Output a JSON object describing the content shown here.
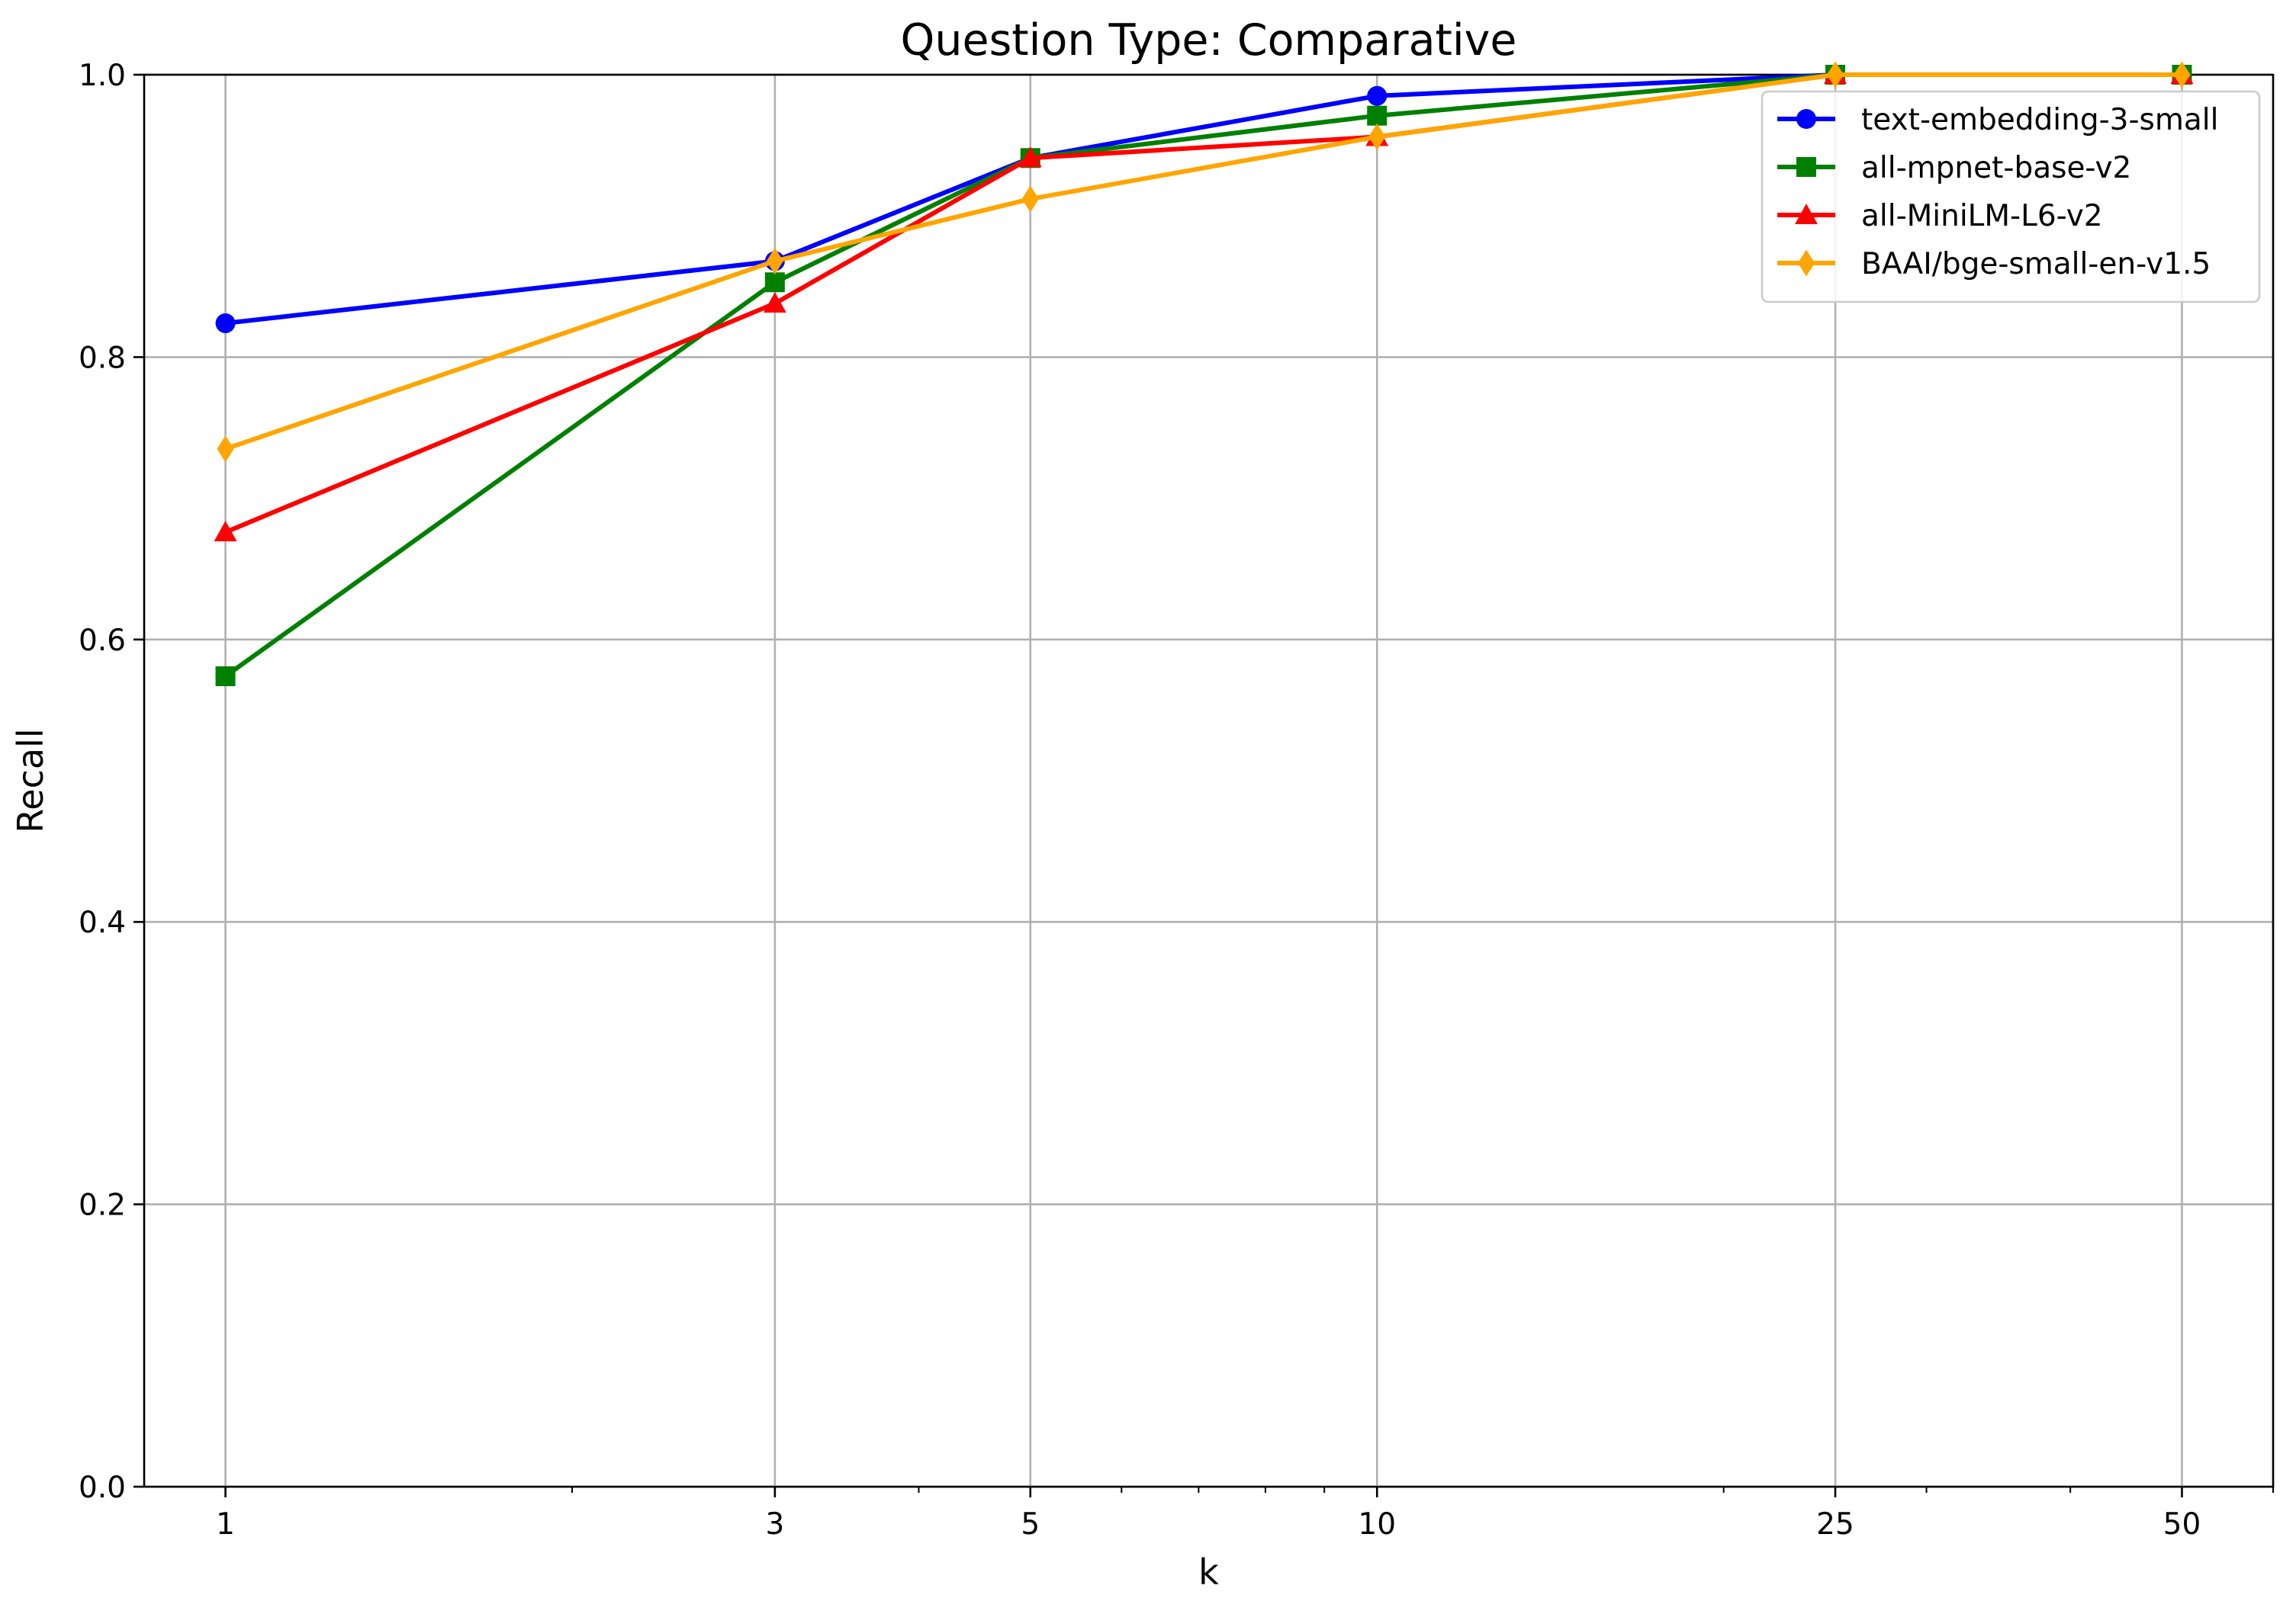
{
  "chart_data": {
    "type": "line",
    "title": "Question Type: Comparative",
    "xlabel": "k",
    "ylabel": "Recall",
    "x_scale": "log",
    "x": [
      1,
      3,
      5,
      10,
      25,
      50
    ],
    "x_tick_labels": [
      "1",
      "3",
      "5",
      "10",
      "25",
      "50"
    ],
    "xlim": [
      0.85,
      60
    ],
    "ylim": [
      0.0,
      1.0
    ],
    "y_ticks": [
      0.0,
      0.2,
      0.4,
      0.6,
      0.8,
      1.0
    ],
    "y_tick_labels": [
      "0.0",
      "0.2",
      "0.4",
      "0.6",
      "0.8",
      "1.0"
    ],
    "grid": true,
    "legend_position": "top-right",
    "series": [
      {
        "name": "text-embedding-3-small",
        "color": "#0000ff",
        "marker": "circle",
        "values": [
          0.824,
          0.868,
          0.941,
          0.985,
          1.0,
          1.0
        ]
      },
      {
        "name": "all-mpnet-base-v2",
        "color": "#008000",
        "marker": "square",
        "values": [
          0.574,
          0.853,
          0.941,
          0.971,
          1.0,
          1.0
        ]
      },
      {
        "name": "all-MiniLM-L6-v2",
        "color": "#ff0000",
        "marker": "triangle",
        "values": [
          0.676,
          0.838,
          0.941,
          0.956,
          1.0,
          1.0
        ]
      },
      {
        "name": "BAAI/bge-small-en-v1.5",
        "color": "#ffa500",
        "marker": "diamond",
        "values": [
          0.735,
          0.868,
          0.912,
          0.956,
          1.0,
          1.0
        ]
      }
    ]
  }
}
